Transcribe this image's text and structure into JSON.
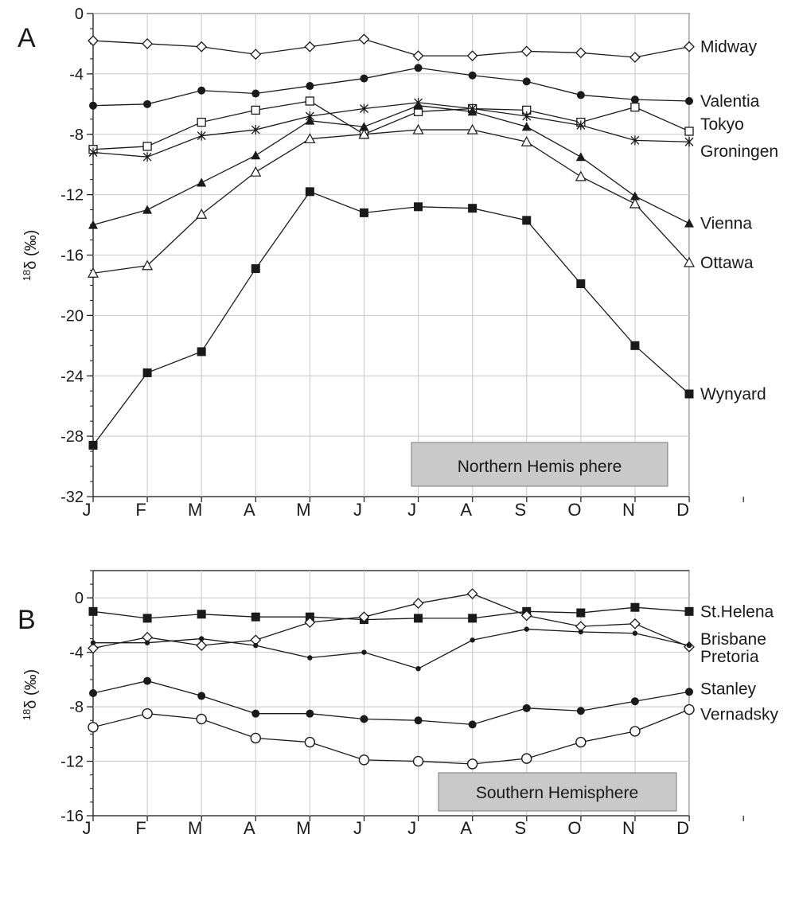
{
  "chart_data": [
    {
      "type": "line",
      "panel_label": "A",
      "ylabel_sup": "18",
      "ylabel": "δ (‰)",
      "ylim": [
        -32,
        0
      ],
      "yticks": [
        "0",
        "-4",
        "-8",
        "-12",
        "-16",
        "-20",
        "-24",
        "-28",
        "-32"
      ],
      "categories": [
        "J",
        "F",
        "M",
        "A",
        "M",
        "J",
        "J",
        "A",
        "S",
        "O",
        "N",
        "D"
      ],
      "grid": true,
      "box_label": "Northern Hemis phere",
      "series": [
        {
          "name": "Midway",
          "marker": "diamond-open",
          "values": [
            -1.8,
            -2.0,
            -2.2,
            -2.7,
            -2.2,
            -1.7,
            -2.8,
            -2.8,
            -2.5,
            -2.6,
            -2.9,
            -2.2
          ]
        },
        {
          "name": "Valentia",
          "marker": "circle-filled",
          "values": [
            -6.1,
            -6.0,
            -5.1,
            -5.3,
            -4.8,
            -4.3,
            -3.6,
            -4.1,
            -4.5,
            -5.4,
            -5.7,
            -5.8
          ]
        },
        {
          "name": "Tokyo",
          "marker": "square-open",
          "values": [
            -9.0,
            -8.8,
            -7.2,
            -6.4,
            -5.8,
            -8.0,
            -6.5,
            -6.3,
            -6.4,
            -7.2,
            -6.2,
            -7.8
          ]
        },
        {
          "name": "Groningen",
          "marker": "star",
          "values": [
            -9.2,
            -9.5,
            -8.1,
            -7.7,
            -6.8,
            -6.3,
            -5.9,
            -6.3,
            -6.8,
            -7.4,
            -8.4,
            -8.5
          ]
        },
        {
          "name": "Vienna",
          "marker": "triangle-filled",
          "values": [
            -14.0,
            -13.0,
            -11.2,
            -9.4,
            -7.1,
            -7.5,
            -6.1,
            -6.5,
            -7.5,
            -9.5,
            -12.1,
            -13.9
          ]
        },
        {
          "name": "Ottawa",
          "marker": "triangle-open",
          "values": [
            -17.2,
            -16.7,
            -13.3,
            -10.5,
            -8.3,
            -8.0,
            -7.7,
            -7.7,
            -8.5,
            -10.8,
            -12.6,
            -16.5
          ]
        },
        {
          "name": "Wynyard",
          "marker": "square-filled",
          "values": [
            -28.6,
            -23.8,
            -22.4,
            -16.9,
            -11.8,
            -13.2,
            -12.8,
            -12.9,
            -13.7,
            -17.9,
            -22.0,
            -25.2
          ]
        }
      ]
    },
    {
      "type": "line",
      "panel_label": "B",
      "ylabel_sup": "18",
      "ylabel": "δ (‰)",
      "ylim": [
        -16,
        2
      ],
      "yticks": [
        "0",
        "-4",
        "-8",
        "-12",
        "-16"
      ],
      "categories": [
        "J",
        "F",
        "M",
        "A",
        "M",
        "J",
        "J",
        "A",
        "S",
        "O",
        "N",
        "D"
      ],
      "grid": true,
      "box_label": "Southern Hemisphere",
      "series": [
        {
          "name": "St.Helena",
          "marker": "square-filled",
          "values": [
            -1.0,
            -1.5,
            -1.2,
            -1.4,
            -1.4,
            -1.6,
            -1.5,
            -1.5,
            -1.0,
            -1.1,
            -0.7,
            -1.0
          ]
        },
        {
          "name": "Brisbane",
          "marker": "diamond-open",
          "values": [
            -3.7,
            -2.9,
            -3.5,
            -3.1,
            -1.8,
            -1.4,
            -0.4,
            0.3,
            -1.3,
            -2.1,
            -1.9,
            -3.6
          ]
        },
        {
          "name": "Pretoria",
          "marker": "small-dot",
          "values": [
            -3.3,
            -3.3,
            -3.0,
            -3.5,
            -4.4,
            -4.0,
            -5.2,
            -3.1,
            -2.3,
            -2.5,
            -2.6,
            -3.5
          ]
        },
        {
          "name": "Stanley",
          "marker": "circle-filled",
          "values": [
            -7.0,
            -6.1,
            -7.2,
            -8.5,
            -8.5,
            -8.9,
            -9.0,
            -9.3,
            -8.1,
            -8.3,
            -7.6,
            -6.9
          ]
        },
        {
          "name": "Vernadsky",
          "marker": "circle-open",
          "values": [
            -9.5,
            -8.5,
            -8.9,
            -10.3,
            -10.6,
            -11.9,
            -12.0,
            -12.2,
            -11.8,
            -10.6,
            -9.8,
            -8.2
          ]
        }
      ]
    }
  ]
}
